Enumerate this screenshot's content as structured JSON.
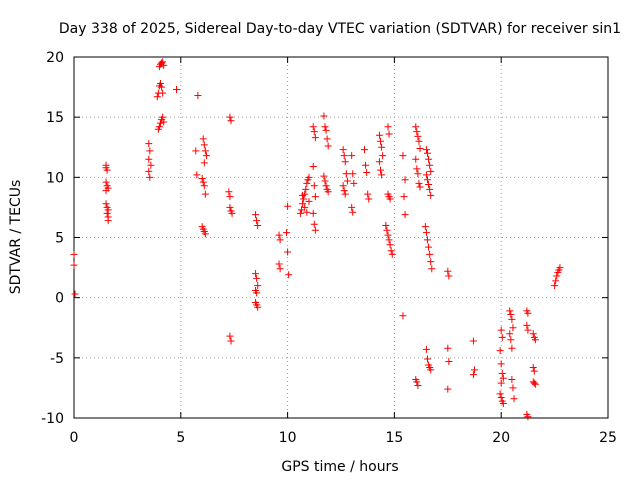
{
  "chart_data": {
    "type": "scatter",
    "title": "Day 338 of 2025, Sidereal Day-to-day VTEC variation (SDTVAR) for receiver sin1",
    "xlabel": "GPS time / hours",
    "ylabel": "SDTVAR / TECUs",
    "xlim": [
      0,
      25
    ],
    "ylim": [
      -10,
      20
    ],
    "xticks": [
      0,
      5,
      10,
      15,
      20,
      25
    ],
    "yticks": [
      -10,
      -5,
      0,
      5,
      10,
      15,
      20
    ],
    "xtick_labels": [
      "0",
      "5",
      "10",
      "15",
      "20",
      "25"
    ],
    "ytick_labels": [
      "-10",
      "-5",
      "0",
      "5",
      "10",
      "15",
      "20"
    ],
    "grid": true,
    "marker": "+",
    "series": [
      {
        "name": "SDTVAR",
        "color": "#ff0000",
        "points": [
          [
            0.0,
            3.6
          ],
          [
            0.0,
            2.7
          ],
          [
            0.05,
            0.3
          ],
          [
            1.5,
            11.0
          ],
          [
            1.5,
            10.8
          ],
          [
            1.55,
            10.6
          ],
          [
            1.5,
            9.6
          ],
          [
            1.55,
            9.3
          ],
          [
            1.6,
            9.1
          ],
          [
            1.5,
            8.9
          ],
          [
            1.5,
            7.8
          ],
          [
            1.55,
            7.5
          ],
          [
            1.6,
            7.3
          ],
          [
            1.55,
            7.0
          ],
          [
            1.6,
            6.7
          ],
          [
            1.6,
            6.4
          ],
          [
            3.5,
            12.8
          ],
          [
            3.55,
            12.2
          ],
          [
            3.5,
            11.5
          ],
          [
            3.6,
            11.0
          ],
          [
            3.5,
            10.5
          ],
          [
            3.55,
            10.0
          ],
          [
            3.9,
            16.7
          ],
          [
            3.95,
            17.0
          ],
          [
            4.0,
            17.6
          ],
          [
            4.05,
            17.8
          ],
          [
            4.1,
            17.5
          ],
          [
            4.15,
            17.0
          ],
          [
            4.0,
            19.2
          ],
          [
            4.05,
            19.4
          ],
          [
            4.1,
            19.5
          ],
          [
            4.15,
            19.6
          ],
          [
            4.2,
            19.3
          ],
          [
            4.0,
            14.2
          ],
          [
            4.05,
            14.5
          ],
          [
            4.1,
            14.8
          ],
          [
            4.15,
            15.0
          ],
          [
            4.2,
            14.6
          ],
          [
            3.95,
            14.0
          ],
          [
            4.8,
            17.3
          ],
          [
            5.8,
            16.8
          ],
          [
            5.7,
            12.2
          ],
          [
            5.75,
            10.2
          ],
          [
            6.05,
            13.2
          ],
          [
            6.1,
            12.7
          ],
          [
            6.15,
            12.2
          ],
          [
            6.2,
            11.8
          ],
          [
            6.1,
            11.2
          ],
          [
            6.0,
            9.9
          ],
          [
            6.05,
            9.6
          ],
          [
            6.1,
            9.3
          ],
          [
            6.15,
            8.6
          ],
          [
            6.0,
            5.9
          ],
          [
            6.05,
            5.7
          ],
          [
            6.1,
            5.5
          ],
          [
            6.15,
            5.3
          ],
          [
            7.3,
            15.0
          ],
          [
            7.35,
            14.7
          ],
          [
            7.25,
            8.8
          ],
          [
            7.3,
            8.4
          ],
          [
            7.3,
            7.5
          ],
          [
            7.35,
            7.2
          ],
          [
            7.4,
            7.0
          ],
          [
            7.3,
            -3.2
          ],
          [
            7.35,
            -3.6
          ],
          [
            8.5,
            6.9
          ],
          [
            8.55,
            6.4
          ],
          [
            8.6,
            6.0
          ],
          [
            8.5,
            2.0
          ],
          [
            8.55,
            1.6
          ],
          [
            8.6,
            1.0
          ],
          [
            8.5,
            0.6
          ],
          [
            8.55,
            0.4
          ],
          [
            8.5,
            -0.4
          ],
          [
            8.55,
            -0.6
          ],
          [
            8.6,
            -0.8
          ],
          [
            9.6,
            5.2
          ],
          [
            9.65,
            4.8
          ],
          [
            9.6,
            2.8
          ],
          [
            9.65,
            2.4
          ],
          [
            10.0,
            7.6
          ],
          [
            9.95,
            5.4
          ],
          [
            10.0,
            3.8
          ],
          [
            10.05,
            1.9
          ],
          [
            10.6,
            7.0
          ],
          [
            10.65,
            7.3
          ],
          [
            10.7,
            7.8
          ],
          [
            10.75,
            8.2
          ],
          [
            10.8,
            8.6
          ],
          [
            10.85,
            9.0
          ],
          [
            10.9,
            9.5
          ],
          [
            10.95,
            9.8
          ],
          [
            11.0,
            10.0
          ],
          [
            10.7,
            8.5
          ],
          [
            10.8,
            7.5
          ],
          [
            10.9,
            7.1
          ],
          [
            11.0,
            8.0
          ],
          [
            11.2,
            14.2
          ],
          [
            11.25,
            13.8
          ],
          [
            11.3,
            13.3
          ],
          [
            11.2,
            10.9
          ],
          [
            11.25,
            9.3
          ],
          [
            11.3,
            8.4
          ],
          [
            11.2,
            7.0
          ],
          [
            11.25,
            6.1
          ],
          [
            11.3,
            5.6
          ],
          [
            11.7,
            15.1
          ],
          [
            11.75,
            14.2
          ],
          [
            11.8,
            13.9
          ],
          [
            11.85,
            13.2
          ],
          [
            11.9,
            12.6
          ],
          [
            11.7,
            10.1
          ],
          [
            11.75,
            9.7
          ],
          [
            11.8,
            9.3
          ],
          [
            11.85,
            9.0
          ],
          [
            11.9,
            8.8
          ],
          [
            12.6,
            12.3
          ],
          [
            12.65,
            11.8
          ],
          [
            12.7,
            11.3
          ],
          [
            12.75,
            10.3
          ],
          [
            12.8,
            9.7
          ],
          [
            12.6,
            9.3
          ],
          [
            12.65,
            8.9
          ],
          [
            12.7,
            8.6
          ],
          [
            13.0,
            11.8
          ],
          [
            13.05,
            10.3
          ],
          [
            13.1,
            9.5
          ],
          [
            13.0,
            7.5
          ],
          [
            13.05,
            7.1
          ],
          [
            13.6,
            12.3
          ],
          [
            13.65,
            11.0
          ],
          [
            13.7,
            10.4
          ],
          [
            13.75,
            8.6
          ],
          [
            13.8,
            8.2
          ],
          [
            14.3,
            13.5
          ],
          [
            14.35,
            13.0
          ],
          [
            14.4,
            12.5
          ],
          [
            14.45,
            11.8
          ],
          [
            14.3,
            11.3
          ],
          [
            14.35,
            10.6
          ],
          [
            14.4,
            10.2
          ],
          [
            14.7,
            14.2
          ],
          [
            14.75,
            13.6
          ],
          [
            14.7,
            8.6
          ],
          [
            14.75,
            8.4
          ],
          [
            14.8,
            8.2
          ],
          [
            14.6,
            6.0
          ],
          [
            14.65,
            5.6
          ],
          [
            14.7,
            5.2
          ],
          [
            14.75,
            4.8
          ],
          [
            14.8,
            4.4
          ],
          [
            14.85,
            3.9
          ],
          [
            14.9,
            3.6
          ],
          [
            15.4,
            11.8
          ],
          [
            15.5,
            9.8
          ],
          [
            15.45,
            8.4
          ],
          [
            15.5,
            6.9
          ],
          [
            15.4,
            -1.5
          ],
          [
            16.0,
            14.2
          ],
          [
            16.05,
            13.8
          ],
          [
            16.1,
            13.4
          ],
          [
            16.15,
            13.0
          ],
          [
            16.2,
            12.4
          ],
          [
            16.0,
            11.5
          ],
          [
            16.05,
            10.7
          ],
          [
            16.1,
            10.3
          ],
          [
            16.15,
            9.5
          ],
          [
            16.2,
            9.2
          ],
          [
            16.0,
            -6.8
          ],
          [
            16.05,
            -7.0
          ],
          [
            16.1,
            -7.3
          ],
          [
            16.5,
            12.3
          ],
          [
            16.55,
            12.0
          ],
          [
            16.6,
            11.5
          ],
          [
            16.65,
            11.0
          ],
          [
            16.7,
            10.5
          ],
          [
            16.5,
            10.2
          ],
          [
            16.55,
            9.8
          ],
          [
            16.6,
            9.4
          ],
          [
            16.65,
            9.0
          ],
          [
            16.7,
            8.5
          ],
          [
            16.45,
            5.9
          ],
          [
            16.5,
            5.4
          ],
          [
            16.55,
            4.8
          ],
          [
            16.6,
            4.2
          ],
          [
            16.65,
            3.6
          ],
          [
            16.7,
            3.0
          ],
          [
            16.75,
            2.4
          ],
          [
            16.5,
            -4.3
          ],
          [
            16.55,
            -5.1
          ],
          [
            16.6,
            -5.6
          ],
          [
            16.65,
            -5.8
          ],
          [
            16.7,
            -6.0
          ],
          [
            17.5,
            2.2
          ],
          [
            17.55,
            1.8
          ],
          [
            17.5,
            -4.2
          ],
          [
            17.55,
            -5.3
          ],
          [
            17.5,
            -7.6
          ],
          [
            18.7,
            -3.6
          ],
          [
            18.75,
            -6.0
          ],
          [
            18.7,
            -6.4
          ],
          [
            20.0,
            -2.7
          ],
          [
            20.05,
            -3.3
          ],
          [
            19.95,
            -4.4
          ],
          [
            20.0,
            -5.5
          ],
          [
            20.05,
            -6.3
          ],
          [
            20.1,
            -6.7
          ],
          [
            20.0,
            -7.1
          ],
          [
            19.95,
            -8.0
          ],
          [
            20.0,
            -8.3
          ],
          [
            20.05,
            -8.6
          ],
          [
            20.1,
            -8.8
          ],
          [
            20.4,
            -1.1
          ],
          [
            20.45,
            -1.4
          ],
          [
            20.5,
            -1.8
          ],
          [
            20.55,
            -2.5
          ],
          [
            20.4,
            -3.0
          ],
          [
            20.45,
            -3.5
          ],
          [
            20.5,
            -4.2
          ],
          [
            20.5,
            -6.8
          ],
          [
            20.55,
            -7.5
          ],
          [
            20.6,
            -8.4
          ],
          [
            21.2,
            -1.1
          ],
          [
            21.25,
            -1.3
          ],
          [
            21.2,
            -2.3
          ],
          [
            21.25,
            -2.7
          ],
          [
            21.2,
            -9.7
          ],
          [
            21.25,
            -9.9
          ],
          [
            21.5,
            -3.0
          ],
          [
            21.55,
            -3.3
          ],
          [
            21.6,
            -3.5
          ],
          [
            21.5,
            -5.8
          ],
          [
            21.55,
            -6.1
          ],
          [
            21.5,
            -7.0
          ],
          [
            21.55,
            -7.1
          ],
          [
            21.6,
            -7.2
          ],
          [
            22.5,
            1.0
          ],
          [
            22.55,
            1.4
          ],
          [
            22.6,
            1.8
          ],
          [
            22.65,
            2.1
          ],
          [
            22.7,
            2.3
          ],
          [
            22.75,
            2.5
          ]
        ]
      }
    ]
  }
}
